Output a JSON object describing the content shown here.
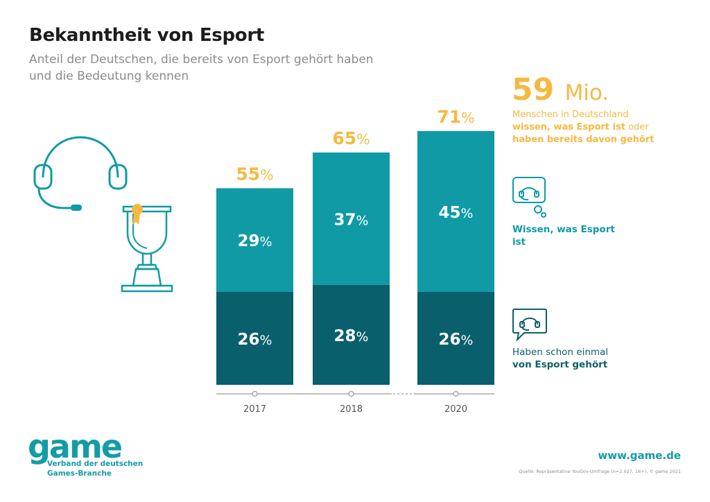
{
  "header": {
    "title": "Bekanntheit von Esport",
    "subtitle": "Anteil der Deutschen, die bereits von Esport gehört haben und die Bedeutung kennen"
  },
  "colors": {
    "accent": "#f5b942",
    "light_teal": "#0f9aa6",
    "dark_teal": "#0a5f6c",
    "axis": "#9a9a9a"
  },
  "chart_data": {
    "type": "bar",
    "stacked": true,
    "categories": [
      "2017",
      "2018",
      "2020"
    ],
    "series": [
      {
        "name": "Haben schon einmal von Esport gehört",
        "values": [
          26,
          28,
          26
        ],
        "labels": [
          "26%",
          "28%",
          "26%"
        ],
        "color": "#0a5f6c"
      },
      {
        "name": "Wissen, was Esport ist",
        "values": [
          29,
          37,
          45
        ],
        "labels": [
          "29%",
          "37%",
          "45%"
        ],
        "color": "#0f9aa6"
      }
    ],
    "totals": [
      55,
      65,
      71
    ],
    "total_labels": [
      "55%",
      "65%",
      "71%"
    ],
    "ylim": [
      0,
      71
    ],
    "axis_break_between": [
      "2018",
      "2020"
    ],
    "grid": false
  },
  "highlight": {
    "number": "59",
    "unit": "Mio.",
    "text_plain_1": "Menschen in Deutschland",
    "text_bold": "wissen, was Esport ist",
    "text_plain_2": "oder",
    "text_bold_2": "haben bereits davon gehört"
  },
  "legend": {
    "item1_label": "Wissen, was Esport ist",
    "item1_icon": "headset-chat-icon",
    "item2_label_plain": "Haben schon einmal",
    "item2_label_bold": "von Esport gehört",
    "item2_icon": "headset-speech-bubble-icon"
  },
  "illustration": {
    "headset_icon": "headset-icon",
    "trophy_icon": "trophy-icon"
  },
  "footer": {
    "logo": "game",
    "logo_sub_line1": "Verband der deutschen",
    "logo_sub_line2": "Games-Branche",
    "website": "www.game.de",
    "source": "Quelle: Repräsentative YouGov-Umfrage (n=2.027, 16+), © game 2021"
  }
}
